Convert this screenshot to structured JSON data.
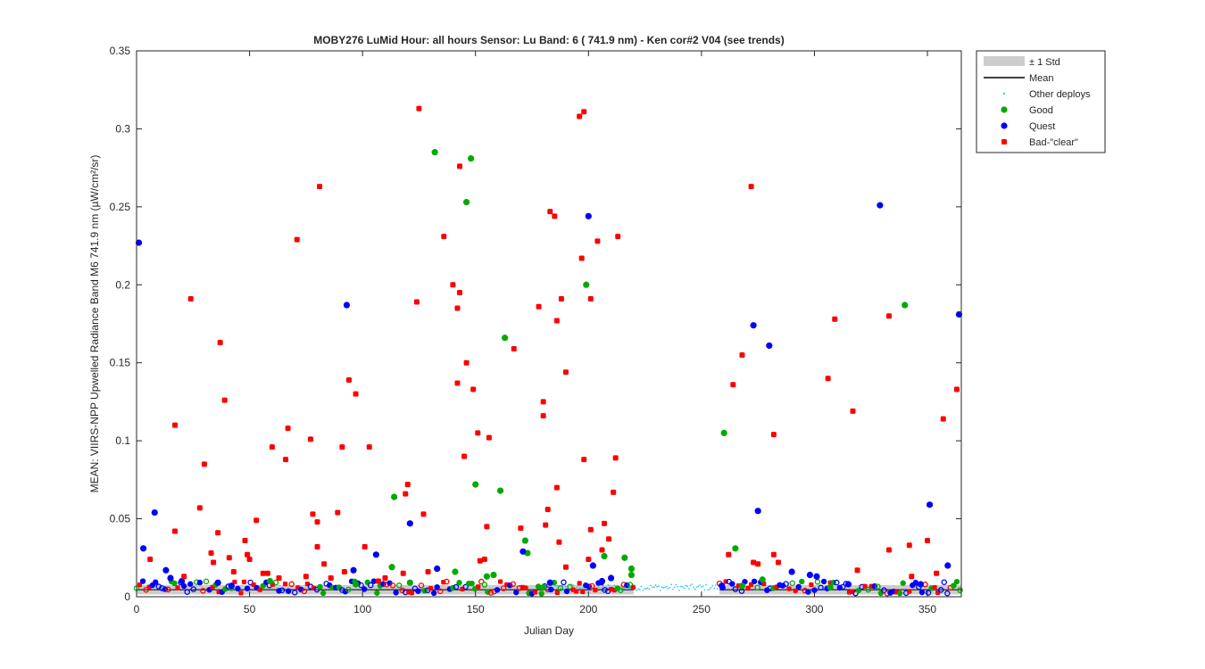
{
  "chart_data": {
    "type": "scatter",
    "title": "MOBY276   LuMid  Hour: all hours  Sensor: Lu Band: 6 ( 741.9 nm)  - Ken cor#2 V04 (see trends)",
    "xlabel": "Julian Day",
    "ylabel": "MEAN: VIIRS-NPP Upwelled Radiance Band M6 741.9 nm (µW/cm²/sr)",
    "xlim": [
      0,
      365
    ],
    "ylim": [
      0,
      0.35
    ],
    "xticks": [
      "0",
      "50",
      "100",
      "150",
      "200",
      "250",
      "300",
      "350"
    ],
    "yticks": [
      "0",
      "0.05",
      "0.1",
      "0.15",
      "0.2",
      "0.25",
      "0.3",
      "0.35"
    ],
    "legend_position": "outside-top-right",
    "legend": [
      {
        "label": "± 1 Std",
        "kind": "band",
        "color": "#cccccc"
      },
      {
        "label": "Mean",
        "kind": "line",
        "color": "#000000"
      },
      {
        "label": "Other deploys",
        "kind": "dot",
        "color": "#33ccee"
      },
      {
        "label": "Good",
        "kind": "marker",
        "color": "#00aa00"
      },
      {
        "label": "Quest",
        "kind": "marker",
        "color": "#0000ff"
      },
      {
        "label": "Bad-\"clear\"",
        "kind": "marker",
        "color": "#ff0000"
      }
    ],
    "series": [
      {
        "name": "Good",
        "color": "#00aa00",
        "points": [
          [
            59,
            0.01
          ],
          [
            97,
            0.008
          ],
          [
            113,
            0.019
          ],
          [
            114,
            0.064
          ],
          [
            121,
            0.009
          ],
          [
            132,
            0.285
          ],
          [
            141,
            0.016
          ],
          [
            146,
            0.253
          ],
          [
            148,
            0.281
          ],
          [
            150,
            0.072
          ],
          [
            155,
            0.013
          ],
          [
            158,
            0.014
          ],
          [
            161,
            0.068
          ],
          [
            163,
            0.166
          ],
          [
            172,
            0.036
          ],
          [
            173,
            0.028
          ],
          [
            180,
            0.006
          ],
          [
            199,
            0.2
          ],
          [
            207,
            0.026
          ],
          [
            216,
            0.025
          ],
          [
            219,
            0.018
          ],
          [
            219,
            0.014
          ],
          [
            260,
            0.105
          ],
          [
            265,
            0.031
          ],
          [
            268,
            0.007
          ],
          [
            277,
            0.011
          ],
          [
            307,
            0.006
          ],
          [
            340,
            0.187
          ]
        ]
      },
      {
        "name": "Quest",
        "color": "#0000ff",
        "points": [
          [
            1,
            0.227
          ],
          [
            3,
            0.031
          ],
          [
            8,
            0.054
          ],
          [
            13,
            0.017
          ],
          [
            15,
            0.012
          ],
          [
            20,
            0.01
          ],
          [
            36,
            0.009
          ],
          [
            42,
            0.007
          ],
          [
            93,
            0.187
          ],
          [
            96,
            0.017
          ],
          [
            106,
            0.027
          ],
          [
            121,
            0.047
          ],
          [
            133,
            0.018
          ],
          [
            171,
            0.029
          ],
          [
            183,
            0.009
          ],
          [
            200,
            0.244
          ],
          [
            202,
            0.02
          ],
          [
            206,
            0.01
          ],
          [
            210,
            0.012
          ],
          [
            259,
            0.007
          ],
          [
            273,
            0.174
          ],
          [
            275,
            0.055
          ],
          [
            280,
            0.161
          ],
          [
            290,
            0.016
          ],
          [
            298,
            0.014
          ],
          [
            301,
            0.013
          ],
          [
            315,
            0.008
          ],
          [
            329,
            0.251
          ],
          [
            347,
            0.008
          ],
          [
            351,
            0.059
          ],
          [
            359,
            0.02
          ],
          [
            364,
            0.181
          ]
        ]
      },
      {
        "name": "Bad-\"clear\"",
        "color": "#ff0000",
        "points": [
          [
            6,
            0.024
          ],
          [
            17,
            0.11
          ],
          [
            17,
            0.042
          ],
          [
            21,
            0.013
          ],
          [
            24,
            0.191
          ],
          [
            28,
            0.057
          ],
          [
            30,
            0.085
          ],
          [
            33,
            0.028
          ],
          [
            34,
            0.022
          ],
          [
            36,
            0.041
          ],
          [
            37,
            0.163
          ],
          [
            39,
            0.126
          ],
          [
            41,
            0.025
          ],
          [
            43,
            0.016
          ],
          [
            48,
            0.036
          ],
          [
            49,
            0.027
          ],
          [
            50,
            0.024
          ],
          [
            53,
            0.049
          ],
          [
            56,
            0.015
          ],
          [
            58,
            0.015
          ],
          [
            60,
            0.096
          ],
          [
            63,
            0.012
          ],
          [
            66,
            0.088
          ],
          [
            67,
            0.108
          ],
          [
            71,
            0.229
          ],
          [
            75,
            0.013
          ],
          [
            77,
            0.101
          ],
          [
            78,
            0.053
          ],
          [
            80,
            0.032
          ],
          [
            80,
            0.048
          ],
          [
            81,
            0.263
          ],
          [
            83,
            0.021
          ],
          [
            86,
            0.012
          ],
          [
            89,
            0.054
          ],
          [
            91,
            0.096
          ],
          [
            92,
            0.016
          ],
          [
            94,
            0.139
          ],
          [
            97,
            0.13
          ],
          [
            101,
            0.032
          ],
          [
            103,
            0.096
          ],
          [
            107,
            0.01
          ],
          [
            110,
            0.012
          ],
          [
            118,
            0.015
          ],
          [
            119,
            0.066
          ],
          [
            120,
            0.072
          ],
          [
            124,
            0.189
          ],
          [
            125,
            0.313
          ],
          [
            127,
            0.053
          ],
          [
            129,
            0.016
          ],
          [
            136,
            0.231
          ],
          [
            140,
            0.2
          ],
          [
            142,
            0.185
          ],
          [
            142,
            0.137
          ],
          [
            143,
            0.276
          ],
          [
            143,
            0.195
          ],
          [
            145,
            0.09
          ],
          [
            146,
            0.15
          ],
          [
            149,
            0.133
          ],
          [
            151,
            0.105
          ],
          [
            152,
            0.023
          ],
          [
            154,
            0.024
          ],
          [
            155,
            0.045
          ],
          [
            156,
            0.102
          ],
          [
            167,
            0.159
          ],
          [
            170,
            0.044
          ],
          [
            178,
            0.186
          ],
          [
            180,
            0.125
          ],
          [
            180,
            0.116
          ],
          [
            181,
            0.046
          ],
          [
            182,
            0.056
          ],
          [
            183,
            0.247
          ],
          [
            185,
            0.244
          ],
          [
            186,
            0.07
          ],
          [
            186,
            0.177
          ],
          [
            187,
            0.035
          ],
          [
            188,
            0.191
          ],
          [
            190,
            0.019
          ],
          [
            190,
            0.144
          ],
          [
            196,
            0.308
          ],
          [
            197,
            0.217
          ],
          [
            198,
            0.311
          ],
          [
            198,
            0.088
          ],
          [
            200,
            0.024
          ],
          [
            201,
            0.191
          ],
          [
            201,
            0.043
          ],
          [
            204,
            0.228
          ],
          [
            206,
            0.03
          ],
          [
            207,
            0.047
          ],
          [
            209,
            0.037
          ],
          [
            211,
            0.067
          ],
          [
            212,
            0.089
          ],
          [
            213,
            0.231
          ],
          [
            262,
            0.027
          ],
          [
            264,
            0.136
          ],
          [
            268,
            0.155
          ],
          [
            272,
            0.263
          ],
          [
            273,
            0.022
          ],
          [
            275,
            0.021
          ],
          [
            282,
            0.104
          ],
          [
            282,
            0.027
          ],
          [
            284,
            0.022
          ],
          [
            306,
            0.14
          ],
          [
            309,
            0.178
          ],
          [
            317,
            0.119
          ],
          [
            319,
            0.017
          ],
          [
            333,
            0.18
          ],
          [
            333,
            0.03
          ],
          [
            342,
            0.033
          ],
          [
            343,
            0.013
          ],
          [
            350,
            0.036
          ],
          [
            354,
            0.015
          ],
          [
            357,
            0.114
          ],
          [
            363,
            0.133
          ]
        ]
      }
    ]
  }
}
